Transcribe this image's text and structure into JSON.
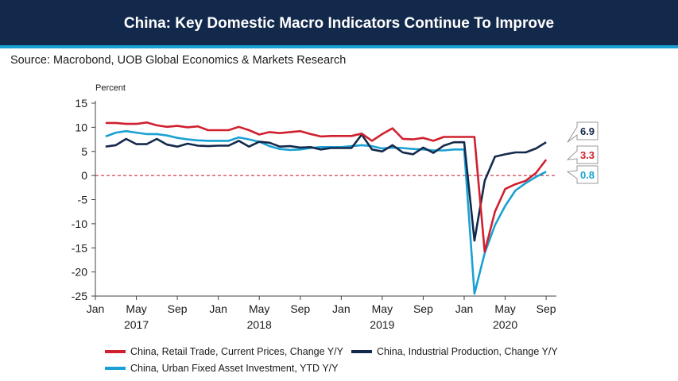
{
  "header": {
    "title": "China: Key Domestic Macro Indicators Continue To Improve",
    "source": "Source: Macrobond, UOB Global Economics & Markets Research"
  },
  "chart_data": {
    "type": "line",
    "ylabel": "Percent",
    "ylim": [
      -25,
      15
    ],
    "yticks": [
      15,
      10,
      5,
      0,
      -5,
      -10,
      -15,
      -20,
      -25
    ],
    "xlim": [
      "2017-01",
      "2020-10"
    ],
    "xtick_labels": [
      "Jan",
      "May",
      "Sep",
      "Jan",
      "May",
      "Sep",
      "Jan",
      "May",
      "Sep",
      "Jan",
      "May",
      "Sep"
    ],
    "year_labels": [
      "2017",
      "2018",
      "2019",
      "2020"
    ],
    "zero_line": {
      "value": 0,
      "color": "#c8102e",
      "style": "dashed"
    },
    "x": [
      "2017-02",
      "2017-03",
      "2017-04",
      "2017-05",
      "2017-06",
      "2017-07",
      "2017-08",
      "2017-09",
      "2017-10",
      "2017-11",
      "2017-12",
      "2018-01",
      "2018-02",
      "2018-03",
      "2018-04",
      "2018-05",
      "2018-06",
      "2018-07",
      "2018-08",
      "2018-09",
      "2018-10",
      "2018-11",
      "2018-12",
      "2019-01",
      "2019-02",
      "2019-03",
      "2019-04",
      "2019-05",
      "2019-06",
      "2019-07",
      "2019-08",
      "2019-09",
      "2019-10",
      "2019-11",
      "2019-12",
      "2020-01",
      "2020-02",
      "2020-03",
      "2020-04",
      "2020-05",
      "2020-06",
      "2020-07",
      "2020-08",
      "2020-09"
    ],
    "series": [
      {
        "name": "China, Retail Trade, Current Prices, Change Y/Y",
        "color": "#d0202e",
        "end_label": "3.3",
        "values": [
          10.9,
          10.9,
          10.7,
          10.7,
          11.0,
          10.4,
          10.1,
          10.3,
          10.0,
          10.2,
          9.4,
          9.4,
          9.4,
          10.1,
          9.4,
          8.5,
          9.0,
          8.8,
          9.0,
          9.2,
          8.6,
          8.1,
          8.2,
          8.2,
          8.2,
          8.7,
          7.2,
          8.6,
          9.8,
          7.6,
          7.5,
          7.8,
          7.2,
          8.0,
          8.0,
          8.0,
          8.0,
          -15.8,
          -7.5,
          -2.8,
          -1.8,
          -1.1,
          0.5,
          3.3
        ]
      },
      {
        "name": "China, Industrial Production, Change Y/Y",
        "color": "#13294b",
        "end_label": "6.9",
        "values": [
          6.0,
          6.3,
          7.6,
          6.5,
          6.5,
          7.6,
          6.4,
          6.0,
          6.6,
          6.2,
          6.1,
          6.2,
          6.2,
          7.2,
          6.0,
          7.0,
          6.8,
          6.0,
          6.1,
          5.8,
          5.9,
          5.4,
          5.7,
          5.7,
          5.7,
          8.5,
          5.4,
          5.0,
          6.3,
          4.8,
          4.4,
          5.8,
          4.7,
          6.2,
          6.9,
          6.9,
          -13.5,
          -1.1,
          3.9,
          4.4,
          4.8,
          4.8,
          5.6,
          6.9
        ]
      },
      {
        "name": "China, Urban Fixed Asset Investment, YTD Y/Y",
        "color": "#1aa1d3",
        "end_label": "0.8",
        "values": [
          8.1,
          8.9,
          9.2,
          8.9,
          8.6,
          8.6,
          8.3,
          7.8,
          7.5,
          7.3,
          7.2,
          7.2,
          7.2,
          7.9,
          7.5,
          7.0,
          6.1,
          5.5,
          5.3,
          5.4,
          5.7,
          5.9,
          5.9,
          5.9,
          6.1,
          6.3,
          6.1,
          5.6,
          5.8,
          5.7,
          5.5,
          5.4,
          5.2,
          5.2,
          5.4,
          5.4,
          -24.5,
          -16.1,
          -10.3,
          -6.3,
          -3.1,
          -1.6,
          -0.3,
          0.8
        ]
      }
    ]
  },
  "legend": {
    "retail": "China, Retail Trade, Current Prices, Change Y/Y",
    "industrial": "China, Industrial Production, Change Y/Y",
    "fai": "China, Urban Fixed Asset Investment, YTD Y/Y"
  }
}
